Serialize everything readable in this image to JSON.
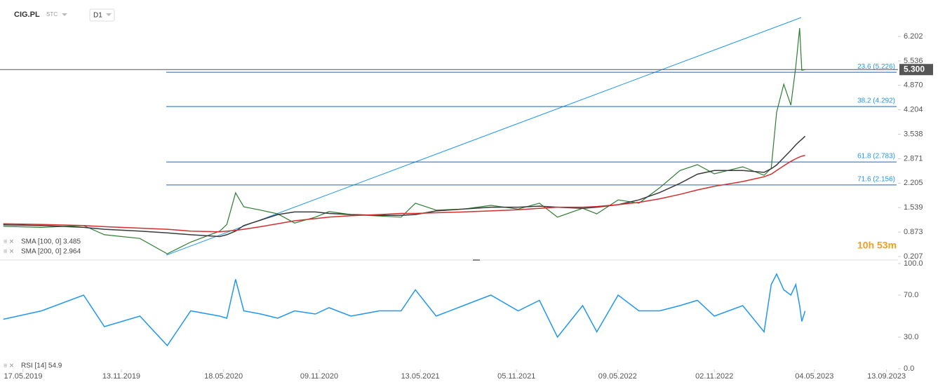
{
  "chart_data": [
    {
      "type": "line",
      "title": "CIG.PL",
      "subtitle": "STC",
      "interval": "D1",
      "countdown": "10h 53m",
      "x": [
        "11.04.2019",
        "20.06.2019",
        "05.09.2019",
        "13.10.2019",
        "17.12.2019",
        "05.02.2020",
        "19.03.2020",
        "11.05.2020",
        "24.05.2020",
        "09.06.2020",
        "24.06.2020",
        "25.07.2020",
        "25.08.2020",
        "25.09.2020",
        "02.11.2020",
        "27.11.2020",
        "06.01.2021",
        "27.02.2021",
        "08.04.2021",
        "04.05.2021",
        "11.06.2021",
        "31.07.2021",
        "19.09.2021",
        "08.11.2021",
        "17.12.2021",
        "19.01.2022",
        "06.03.2022",
        "01.04.2022",
        "10.05.2022",
        "17.06.2022",
        "25.07.2022",
        "31.08.2022",
        "02.10.2022",
        "02.11.2022",
        "24.12.2022",
        "01.02.2023",
        "14.02.2023",
        "24.02.2023",
        "09.03.2023",
        "22.03.2023",
        "31.03.2023",
        "07.04.2023",
        "11.04.2023",
        "17.04.2023"
      ],
      "series": [
        {
          "color": "#2e7d32",
          "values": [
            1.03,
            1.0,
            1.05,
            0.8,
            0.7,
            0.28,
            0.6,
            0.9,
            1.08,
            1.94,
            1.56,
            1.47,
            1.37,
            1.12,
            1.28,
            1.43,
            1.35,
            1.31,
            1.28,
            1.66,
            1.47,
            1.5,
            1.6,
            1.5,
            1.66,
            1.28,
            1.52,
            1.37,
            1.75,
            1.66,
            2.08,
            2.55,
            2.71,
            2.46,
            2.65,
            2.42,
            2.61,
            4.14,
            4.9,
            4.33,
            5.38,
            6.43,
            5.28,
            5.3
          ]
        },
        {
          "name": "SMA [100, 0] 3.485",
          "color": "#3a3a3a",
          "values": [
            1.07,
            1.05,
            1.0,
            0.95,
            0.9,
            0.85,
            0.8,
            0.75,
            0.8,
            0.9,
            1.05,
            1.2,
            1.35,
            1.42,
            1.42,
            1.38,
            1.35,
            1.33,
            1.33,
            1.35,
            1.45,
            1.5,
            1.55,
            1.55,
            1.58,
            1.55,
            1.52,
            1.55,
            1.62,
            1.75,
            1.95,
            2.2,
            2.45,
            2.55,
            2.55,
            2.5,
            2.6,
            2.7,
            2.9,
            3.1,
            3.25,
            3.35,
            3.4,
            3.485
          ]
        },
        {
          "name": "SMA [200, 0] 2.964",
          "color": "#d32f2f",
          "values": [
            1.1,
            1.08,
            1.05,
            1.02,
            0.98,
            0.95,
            0.9,
            0.88,
            0.9,
            0.92,
            0.95,
            1.02,
            1.1,
            1.18,
            1.24,
            1.28,
            1.32,
            1.35,
            1.38,
            1.38,
            1.4,
            1.42,
            1.45,
            1.48,
            1.52,
            1.55,
            1.55,
            1.57,
            1.62,
            1.68,
            1.78,
            1.9,
            2.02,
            2.12,
            2.25,
            2.38,
            2.45,
            2.55,
            2.68,
            2.8,
            2.87,
            2.92,
            2.94,
            2.964
          ]
        }
      ],
      "levels": [
        {
          "value": 5.226,
          "label": "23.6 (5.226)"
        },
        {
          "value": 4.292,
          "label": "38.2 (4.292)"
        },
        {
          "value": 2.783,
          "label": "61.8 (2.783)"
        },
        {
          "value": 2.156,
          "label": "71.6 (2.156)"
        }
      ],
      "level_color": "#1565c0",
      "last_price": {
        "value": 5.3,
        "label": "5.300"
      },
      "xlim": [
        "05.04.2019",
        "04.10.2023"
      ],
      "ylim": [
        0.13,
        7.1
      ],
      "yticks": [
        0.207,
        0.873,
        1.539,
        2.205,
        2.871,
        3.538,
        4.204,
        {
          "value": 4.87,
          "label": "4.870"
        },
        5.536,
        6.202
      ]
    },
    {
      "type": "line",
      "x": [
        "11.04.2019",
        "20.06.2019",
        "05.09.2019",
        "13.10.2019",
        "17.12.2019",
        "05.02.2020",
        "19.03.2020",
        "11.05.2020",
        "24.05.2020",
        "09.06.2020",
        "24.06.2020",
        "25.07.2020",
        "25.08.2020",
        "25.09.2020",
        "02.11.2020",
        "27.11.2020",
        "06.01.2021",
        "27.02.2021",
        "08.04.2021",
        "04.05.2021",
        "11.06.2021",
        "31.07.2021",
        "19.09.2021",
        "08.11.2021",
        "17.12.2021",
        "19.01.2022",
        "06.03.2022",
        "01.04.2022",
        "10.05.2022",
        "17.06.2022",
        "25.07.2022",
        "31.08.2022",
        "02.10.2022",
        "02.11.2022",
        "24.12.2022",
        "01.02.2023",
        "14.02.2023",
        "24.02.2023",
        "09.03.2023",
        "22.03.2023",
        "31.03.2023",
        "07.04.2023",
        "11.04.2023",
        "17.04.2023"
      ],
      "series": [
        {
          "name": "RSI [14] 54.9",
          "color": "#2196f3",
          "values": [
            47,
            55,
            70,
            40,
            50,
            22,
            55,
            50,
            48,
            85,
            55,
            52,
            48,
            55,
            52,
            58,
            50,
            55,
            55,
            75,
            50,
            60,
            70,
            55,
            65,
            30,
            60,
            35,
            70,
            55,
            55,
            60,
            65,
            50,
            60,
            35,
            80,
            90,
            75,
            70,
            80,
            60,
            45,
            54.9
          ]
        }
      ],
      "xlim": [
        "05.04.2019",
        "04.10.2023"
      ],
      "xticks": [
        "17.05.2019",
        "13.11.2019",
        "18.05.2020",
        "09.11.2020",
        "13.05.2021",
        "05.11.2021",
        "09.05.2022",
        "02.11.2022",
        "04.05.2023",
        "13.09.2023"
      ],
      "ylim": [
        0,
        100
      ],
      "yticks": [
        {
          "value": 100,
          "label": "100.0"
        },
        {
          "value": 70,
          "label": "70.0"
        },
        {
          "value": 30,
          "label": "30.0"
        },
        {
          "value": 0,
          "label": "0.0"
        }
      ]
    }
  ]
}
